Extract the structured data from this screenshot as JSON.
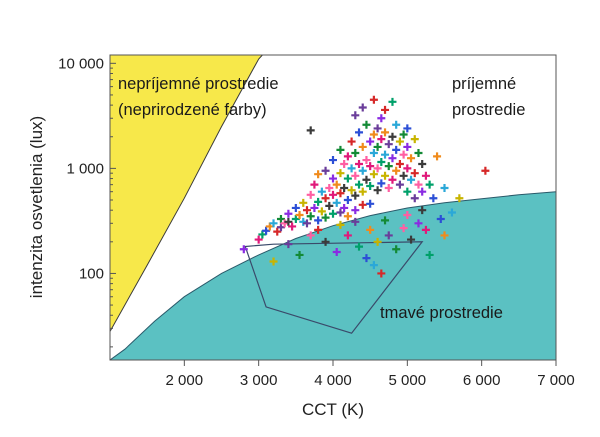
{
  "chart_data": {
    "type": "scatter",
    "xlabel": "CCT (K)",
    "ylabel": "intenzita osvetlenia (lux)",
    "xlim": [
      1000,
      7000
    ],
    "ylim": [
      15,
      12000
    ],
    "y_scale": "log",
    "grid": false,
    "x_ticks": [
      {
        "value": 2000,
        "label": "2 000"
      },
      {
        "value": 3000,
        "label": "3 000"
      },
      {
        "value": 4000,
        "label": "4 000"
      },
      {
        "value": 5000,
        "label": "5 000"
      },
      {
        "value": 6000,
        "label": "6 000"
      },
      {
        "value": 7000,
        "label": "7 000"
      }
    ],
    "y_ticks": [
      {
        "value": 100,
        "label": "100"
      },
      {
        "value": 1000,
        "label": "1 000"
      },
      {
        "value": 10000,
        "label": "10 000"
      }
    ],
    "regions": {
      "unpleasant": {
        "label_lines": [
          "nepríjemné prostredie",
          "(neprirodzené farby)"
        ],
        "color": "#f7e84a",
        "boundary": [
          [
            1000,
            28
          ],
          [
            1500,
            120
          ],
          [
            2000,
            520
          ],
          [
            2500,
            2500
          ],
          [
            3000,
            11000
          ],
          [
            3050,
            12000
          ]
        ]
      },
      "pleasant": {
        "label_lines": [
          "príjemné",
          "prostredie"
        ]
      },
      "dark": {
        "label": "tmavé prostredie",
        "color": "#5bc1c2",
        "boundary": [
          [
            1000,
            15
          ],
          [
            1200,
            19
          ],
          [
            1600,
            35
          ],
          [
            2000,
            60
          ],
          [
            2500,
            100
          ],
          [
            3000,
            150
          ],
          [
            3500,
            215
          ],
          [
            4000,
            285
          ],
          [
            4500,
            355
          ],
          [
            5000,
            420
          ],
          [
            5500,
            470
          ],
          [
            6000,
            515
          ],
          [
            6500,
            560
          ],
          [
            7000,
            600
          ]
        ]
      }
    },
    "outline_polygon": [
      [
        2800,
        180
      ],
      [
        3200,
        190
      ],
      [
        5200,
        200
      ],
      [
        4250,
        27
      ],
      [
        3100,
        48
      ],
      [
        2820,
        180
      ]
    ],
    "point_colors": [
      "#8a2be2",
      "#e0197a",
      "#00a06a",
      "#2c4fd6",
      "#f08b1c",
      "#2aa8d8",
      "#c8b400",
      "#d62828",
      "#6a3d9a",
      "#138a36",
      "#ff5fa2",
      "#3b3b3b"
    ],
    "points": [
      {
        "x": 2800,
        "y": 170
      },
      {
        "x": 3000,
        "y": 210
      },
      {
        "x": 3050,
        "y": 235
      },
      {
        "x": 3100,
        "y": 255
      },
      {
        "x": 3150,
        "y": 280
      },
      {
        "x": 3200,
        "y": 300
      },
      {
        "x": 3200,
        "y": 130
      },
      {
        "x": 3250,
        "y": 250
      },
      {
        "x": 3300,
        "y": 275
      },
      {
        "x": 3300,
        "y": 330
      },
      {
        "x": 3350,
        "y": 300
      },
      {
        "x": 3400,
        "y": 310
      },
      {
        "x": 3400,
        "y": 370
      },
      {
        "x": 3450,
        "y": 280
      },
      {
        "x": 3500,
        "y": 330
      },
      {
        "x": 3500,
        "y": 420
      },
      {
        "x": 3550,
        "y": 360
      },
      {
        "x": 3600,
        "y": 310
      },
      {
        "x": 3600,
        "y": 470
      },
      {
        "x": 3650,
        "y": 400
      },
      {
        "x": 3650,
        "y": 300
      },
      {
        "x": 3700,
        "y": 350
      },
      {
        "x": 3700,
        "y": 560
      },
      {
        "x": 3700,
        "y": 2300
      },
      {
        "x": 3750,
        "y": 420
      },
      {
        "x": 3750,
        "y": 700
      },
      {
        "x": 3800,
        "y": 480
      },
      {
        "x": 3800,
        "y": 320
      },
      {
        "x": 3800,
        "y": 880
      },
      {
        "x": 3850,
        "y": 600
      },
      {
        "x": 3850,
        "y": 390
      },
      {
        "x": 3900,
        "y": 520
      },
      {
        "x": 3900,
        "y": 950
      },
      {
        "x": 3900,
        "y": 340
      },
      {
        "x": 3950,
        "y": 650
      },
      {
        "x": 3950,
        "y": 440
      },
      {
        "x": 4000,
        "y": 800
      },
      {
        "x": 4000,
        "y": 560
      },
      {
        "x": 4000,
        "y": 370
      },
      {
        "x": 4000,
        "y": 1200
      },
      {
        "x": 4050,
        "y": 700
      },
      {
        "x": 4050,
        "y": 470
      },
      {
        "x": 4100,
        "y": 900
      },
      {
        "x": 4100,
        "y": 580
      },
      {
        "x": 4100,
        "y": 380
      },
      {
        "x": 4100,
        "y": 1500
      },
      {
        "x": 4150,
        "y": 1100
      },
      {
        "x": 4150,
        "y": 650
      },
      {
        "x": 4150,
        "y": 420
      },
      {
        "x": 4200,
        "y": 1300
      },
      {
        "x": 4200,
        "y": 800
      },
      {
        "x": 4200,
        "y": 500
      },
      {
        "x": 4200,
        "y": 350
      },
      {
        "x": 4250,
        "y": 1000
      },
      {
        "x": 4250,
        "y": 620
      },
      {
        "x": 4250,
        "y": 1800
      },
      {
        "x": 4300,
        "y": 3200
      },
      {
        "x": 4300,
        "y": 1400
      },
      {
        "x": 4300,
        "y": 850
      },
      {
        "x": 4300,
        "y": 550
      },
      {
        "x": 4300,
        "y": 400
      },
      {
        "x": 4350,
        "y": 1100
      },
      {
        "x": 4350,
        "y": 700
      },
      {
        "x": 4350,
        "y": 2200
      },
      {
        "x": 4400,
        "y": 1600
      },
      {
        "x": 4400,
        "y": 950
      },
      {
        "x": 4400,
        "y": 600
      },
      {
        "x": 4400,
        "y": 450
      },
      {
        "x": 4400,
        "y": 3800
      },
      {
        "x": 4450,
        "y": 2600
      },
      {
        "x": 4450,
        "y": 1200
      },
      {
        "x": 4450,
        "y": 780
      },
      {
        "x": 4500,
        "y": 1800
      },
      {
        "x": 4500,
        "y": 1050
      },
      {
        "x": 4500,
        "y": 680
      },
      {
        "x": 4500,
        "y": 460
      },
      {
        "x": 4550,
        "y": 2100
      },
      {
        "x": 4550,
        "y": 1400
      },
      {
        "x": 4550,
        "y": 880
      },
      {
        "x": 4550,
        "y": 4500
      },
      {
        "x": 4600,
        "y": 2400
      },
      {
        "x": 4600,
        "y": 1600
      },
      {
        "x": 4600,
        "y": 1000
      },
      {
        "x": 4600,
        "y": 620
      },
      {
        "x": 4650,
        "y": 3000
      },
      {
        "x": 4650,
        "y": 1900
      },
      {
        "x": 4650,
        "y": 1150
      },
      {
        "x": 4650,
        "y": 720
      },
      {
        "x": 4700,
        "y": 2200
      },
      {
        "x": 4700,
        "y": 1350
      },
      {
        "x": 4700,
        "y": 850
      },
      {
        "x": 4700,
        "y": 3600
      },
      {
        "x": 4750,
        "y": 1700
      },
      {
        "x": 4750,
        "y": 1050
      },
      {
        "x": 4750,
        "y": 650
      },
      {
        "x": 4800,
        "y": 2000
      },
      {
        "x": 4800,
        "y": 1250
      },
      {
        "x": 4800,
        "y": 780
      },
      {
        "x": 4800,
        "y": 4300
      },
      {
        "x": 4850,
        "y": 1500
      },
      {
        "x": 4850,
        "y": 950
      },
      {
        "x": 4850,
        "y": 2600
      },
      {
        "x": 4900,
        "y": 1800
      },
      {
        "x": 4900,
        "y": 1100
      },
      {
        "x": 4900,
        "y": 700
      },
      {
        "x": 4950,
        "y": 2100
      },
      {
        "x": 4950,
        "y": 1350
      },
      {
        "x": 4950,
        "y": 850
      },
      {
        "x": 5000,
        "y": 1600
      },
      {
        "x": 5000,
        "y": 1000
      },
      {
        "x": 5000,
        "y": 600
      },
      {
        "x": 5000,
        "y": 2400
      },
      {
        "x": 5050,
        "y": 1250
      },
      {
        "x": 5050,
        "y": 780
      },
      {
        "x": 5100,
        "y": 1900
      },
      {
        "x": 5100,
        "y": 900
      },
      {
        "x": 5100,
        "y": 520
      },
      {
        "x": 5150,
        "y": 1400
      },
      {
        "x": 5150,
        "y": 700
      },
      {
        "x": 5200,
        "y": 1100
      },
      {
        "x": 5200,
        "y": 600
      },
      {
        "x": 5250,
        "y": 850
      },
      {
        "x": 5300,
        "y": 700
      },
      {
        "x": 5350,
        "y": 520
      },
      {
        "x": 5400,
        "y": 1300
      },
      {
        "x": 5500,
        "y": 650
      },
      {
        "x": 5700,
        "y": 520
      },
      {
        "x": 6050,
        "y": 950
      },
      {
        "x": 3400,
        "y": 190
      },
      {
        "x": 3550,
        "y": 150
      },
      {
        "x": 3700,
        "y": 230
      },
      {
        "x": 3900,
        "y": 200
      },
      {
        "x": 4050,
        "y": 160
      },
      {
        "x": 4200,
        "y": 230
      },
      {
        "x": 4350,
        "y": 180
      },
      {
        "x": 4450,
        "y": 140
      },
      {
        "x": 4500,
        "y": 260
      },
      {
        "x": 4550,
        "y": 120
      },
      {
        "x": 4600,
        "y": 200
      },
      {
        "x": 4650,
        "y": 100
      },
      {
        "x": 4750,
        "y": 230
      },
      {
        "x": 4850,
        "y": 170
      },
      {
        "x": 4950,
        "y": 270
      },
      {
        "x": 5050,
        "y": 210
      },
      {
        "x": 5150,
        "y": 300
      },
      {
        "x": 5250,
        "y": 260
      },
      {
        "x": 5300,
        "y": 150
      },
      {
        "x": 5450,
        "y": 330
      },
      {
        "x": 5500,
        "y": 230
      },
      {
        "x": 5600,
        "y": 380
      },
      {
        "x": 4100,
        "y": 290
      },
      {
        "x": 3800,
        "y": 260
      },
      {
        "x": 4300,
        "y": 310
      },
      {
        "x": 4700,
        "y": 320
      },
      {
        "x": 5000,
        "y": 360
      },
      {
        "x": 5200,
        "y": 400
      }
    ]
  }
}
